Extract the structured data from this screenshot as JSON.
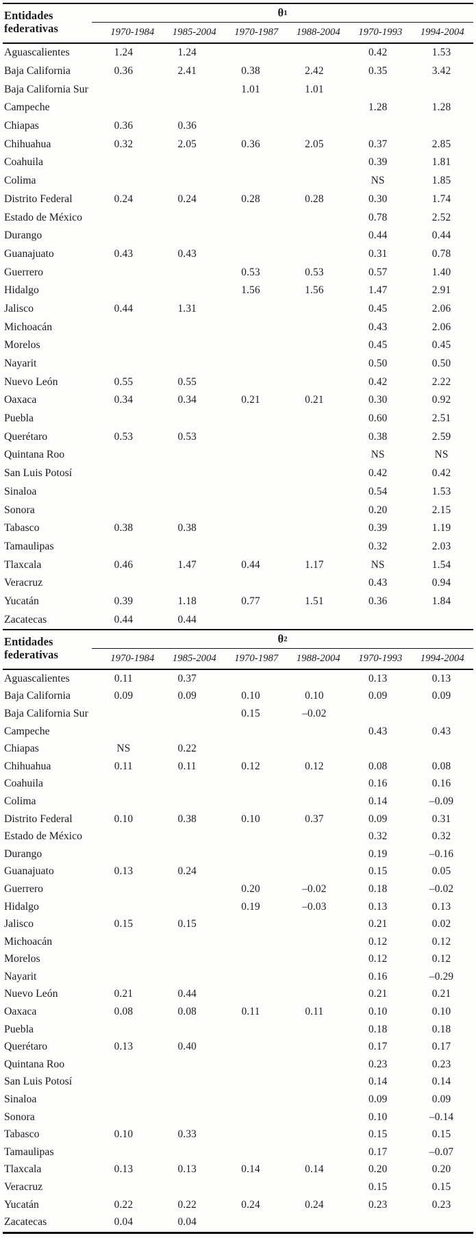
{
  "columns": [
    "1970-1984",
    "1985-2004",
    "1970-1987",
    "1988-2004",
    "1970-1993",
    "1994-2004"
  ],
  "tables": [
    {
      "row_header_line1": "Entidades",
      "row_header_line2": "federativas",
      "theta_symbol": "θ",
      "theta_sub": "1",
      "rows": [
        {
          "name": "Aguascalientes",
          "values": [
            "1.24",
            "1.24",
            "",
            "",
            "0.42",
            "1.53"
          ]
        },
        {
          "name": "Baja California",
          "values": [
            "0.36",
            "2.41",
            "0.38",
            "2.42",
            "0.35",
            "3.42"
          ]
        },
        {
          "name": "Baja California Sur",
          "values": [
            "",
            "",
            "1.01",
            "1.01",
            "",
            ""
          ]
        },
        {
          "name": "Campeche",
          "values": [
            "",
            "",
            "",
            "",
            "1.28",
            "1.28"
          ]
        },
        {
          "name": "Chiapas",
          "values": [
            "0.36",
            "0.36",
            "",
            "",
            "",
            ""
          ]
        },
        {
          "name": "Chihuahua",
          "values": [
            "0.32",
            "2.05",
            "0.36",
            "2.05",
            "0.37",
            "2.85"
          ]
        },
        {
          "name": "Coahuila",
          "values": [
            "",
            "",
            "",
            "",
            "0.39",
            "1.81"
          ]
        },
        {
          "name": "Colima",
          "values": [
            "",
            "",
            "",
            "",
            "NS",
            "1.85"
          ]
        },
        {
          "name": "Distrito Federal",
          "values": [
            "0.24",
            "0.24",
            "0.28",
            "0.28",
            "0.30",
            "1.74"
          ]
        },
        {
          "name": "Estado de México",
          "values": [
            "",
            "",
            "",
            "",
            "0.78",
            "2.52"
          ]
        },
        {
          "name": "Durango",
          "values": [
            "",
            "",
            "",
            "",
            "0.44",
            "0.44"
          ]
        },
        {
          "name": "Guanajuato",
          "values": [
            "0.43",
            "0.43",
            "",
            "",
            "0.31",
            "0.78"
          ]
        },
        {
          "name": "Guerrero",
          "values": [
            "",
            "",
            "0.53",
            "0.53",
            "0.57",
            "1.40"
          ]
        },
        {
          "name": "Hidalgo",
          "values": [
            "",
            "",
            "1.56",
            "1.56",
            "1.47",
            "2.91"
          ]
        },
        {
          "name": "Jalisco",
          "values": [
            "0.44",
            "1.31",
            "",
            "",
            "0.45",
            "2.06"
          ]
        },
        {
          "name": "Michoacán",
          "values": [
            "",
            "",
            "",
            "",
            "0.43",
            "2.06"
          ]
        },
        {
          "name": "Morelos",
          "values": [
            "",
            "",
            "",
            "",
            "0.45",
            "0.45"
          ]
        },
        {
          "name": "Nayarit",
          "values": [
            "",
            "",
            "",
            "",
            "0.50",
            "0.50"
          ]
        },
        {
          "name": "Nuevo León",
          "values": [
            "0.55",
            "0.55",
            "",
            "",
            "0.42",
            "2.22"
          ]
        },
        {
          "name": "Oaxaca",
          "values": [
            "0.34",
            "0.34",
            "0.21",
            "0.21",
            "0.30",
            "0.92"
          ]
        },
        {
          "name": "Puebla",
          "values": [
            "",
            "",
            "",
            "",
            "0.60",
            "2.51"
          ]
        },
        {
          "name": "Querétaro",
          "values": [
            "0.53",
            "0.53",
            "",
            "",
            "0.38",
            "2.59"
          ]
        },
        {
          "name": "Quintana Roo",
          "values": [
            "",
            "",
            "",
            "",
            "NS",
            "NS"
          ]
        },
        {
          "name": "San Luis Potosí",
          "values": [
            "",
            "",
            "",
            "",
            "0.42",
            "0.42"
          ]
        },
        {
          "name": "Sinaloa",
          "values": [
            "",
            "",
            "",
            "",
            "0.54",
            "1.53"
          ]
        },
        {
          "name": "Sonora",
          "values": [
            "",
            "",
            "",
            "",
            "0.20",
            "2.15"
          ]
        },
        {
          "name": "Tabasco",
          "values": [
            "0.38",
            "0.38",
            "",
            "",
            "0.39",
            "1.19"
          ]
        },
        {
          "name": "Tamaulipas",
          "values": [
            "",
            "",
            "",
            "",
            "0.32",
            "2.03"
          ]
        },
        {
          "name": "Tlaxcala",
          "values": [
            "0.46",
            "1.47",
            "0.44",
            "1.17",
            "NS",
            "1.54"
          ]
        },
        {
          "name": "Veracruz",
          "values": [
            "",
            "",
            "",
            "",
            "0.43",
            "0.94"
          ]
        },
        {
          "name": "Yucatán",
          "values": [
            "0.39",
            "1.18",
            "0.77",
            "1.51",
            "0.36",
            "1.84"
          ]
        },
        {
          "name": "Zacatecas",
          "values": [
            "0.44",
            "0.44",
            "",
            "",
            "",
            ""
          ]
        }
      ]
    },
    {
      "row_header_line1": "Entidades",
      "row_header_line2": "federativas",
      "theta_symbol": "θ",
      "theta_sub": "2",
      "rows": [
        {
          "name": "Aguascalientes",
          "values": [
            "0.11",
            "0.37",
            "",
            "",
            "0.13",
            "0.13"
          ]
        },
        {
          "name": "Baja California",
          "values": [
            "0.09",
            "0.09",
            "0.10",
            "0.10",
            "0.09",
            "0.09"
          ]
        },
        {
          "name": "Baja California Sur",
          "values": [
            "",
            "",
            "0.15",
            "–0.02",
            "",
            ""
          ]
        },
        {
          "name": "Campeche",
          "values": [
            "",
            "",
            "",
            "",
            "0.43",
            "0.43"
          ]
        },
        {
          "name": "Chiapas",
          "values": [
            "NS",
            "0.22",
            "",
            "",
            "",
            ""
          ]
        },
        {
          "name": "Chihuahua",
          "values": [
            "0.11",
            "0.11",
            "0.12",
            "0.12",
            "0.08",
            "0.08"
          ]
        },
        {
          "name": "Coahuila",
          "values": [
            "",
            "",
            "",
            "",
            "0.16",
            "0.16"
          ]
        },
        {
          "name": "Colima",
          "values": [
            "",
            "",
            "",
            "",
            "0.14",
            "–0.09"
          ]
        },
        {
          "name": "Distrito Federal",
          "values": [
            "0.10",
            "0.38",
            "0.10",
            "0.37",
            "0.09",
            "0.31"
          ]
        },
        {
          "name": "Estado de México",
          "values": [
            "",
            "",
            "",
            "",
            "0.32",
            "0.32"
          ]
        },
        {
          "name": "Durango",
          "values": [
            "",
            "",
            "",
            "",
            "0.19",
            "–0.16"
          ]
        },
        {
          "name": "Guanajuato",
          "values": [
            "0.13",
            "0.24",
            "",
            "",
            "0.15",
            "0.05"
          ]
        },
        {
          "name": "Guerrero",
          "values": [
            "",
            "",
            "0.20",
            "–0.02",
            "0.18",
            "–0.02"
          ]
        },
        {
          "name": "Hidalgo",
          "values": [
            "",
            "",
            "0.19",
            "–0.03",
            "0.13",
            "0.13"
          ]
        },
        {
          "name": "Jalisco",
          "values": [
            "0.15",
            "0.15",
            "",
            "",
            "0.21",
            "0.02"
          ]
        },
        {
          "name": "Michoacán",
          "values": [
            "",
            "",
            "",
            "",
            "0.12",
            "0.12"
          ]
        },
        {
          "name": "Morelos",
          "values": [
            "",
            "",
            "",
            "",
            "0.12",
            "0.12"
          ]
        },
        {
          "name": "Nayarit",
          "values": [
            "",
            "",
            "",
            "",
            "0.16",
            "–0.29"
          ]
        },
        {
          "name": "Nuevo León",
          "values": [
            "0.21",
            "0.44",
            "",
            "",
            "0.21",
            "0.21"
          ]
        },
        {
          "name": "Oaxaca",
          "values": [
            "0.08",
            "0.08",
            "0.11",
            "0.11",
            "0.10",
            "0.10"
          ]
        },
        {
          "name": "Puebla",
          "values": [
            "",
            "",
            "",
            "",
            "0.18",
            "0.18"
          ]
        },
        {
          "name": "Querétaro",
          "values": [
            "0.13",
            "0.40",
            "",
            "",
            "0.17",
            "0.17"
          ]
        },
        {
          "name": "Quintana Roo",
          "values": [
            "",
            "",
            "",
            "",
            "0.23",
            "0.23"
          ]
        },
        {
          "name": "San Luis Potosí",
          "values": [
            "",
            "",
            "",
            "",
            "0.14",
            "0.14"
          ]
        },
        {
          "name": "Sinaloa",
          "values": [
            "",
            "",
            "",
            "",
            "0.09",
            "0.09"
          ]
        },
        {
          "name": "Sonora",
          "values": [
            "",
            "",
            "",
            "",
            "0.10",
            "–0.14"
          ]
        },
        {
          "name": "Tabasco",
          "values": [
            "0.10",
            "0.33",
            "",
            "",
            "0.15",
            "0.15"
          ]
        },
        {
          "name": "Tamaulipas",
          "values": [
            "",
            "",
            "",
            "",
            "0.17",
            "–0.07"
          ]
        },
        {
          "name": "Tlaxcala",
          "values": [
            "0.13",
            "0.13",
            "0.14",
            "0.14",
            "0.20",
            "0.20"
          ]
        },
        {
          "name": "Veracruz",
          "values": [
            "",
            "",
            "",
            "",
            "0.15",
            "0.15"
          ]
        },
        {
          "name": "Yucatán",
          "values": [
            "0.22",
            "0.22",
            "0.24",
            "0.24",
            "0.23",
            "0.23"
          ]
        },
        {
          "name": "Zacatecas",
          "values": [
            "0.04",
            "0.04",
            "",
            "",
            "",
            ""
          ]
        }
      ]
    }
  ]
}
